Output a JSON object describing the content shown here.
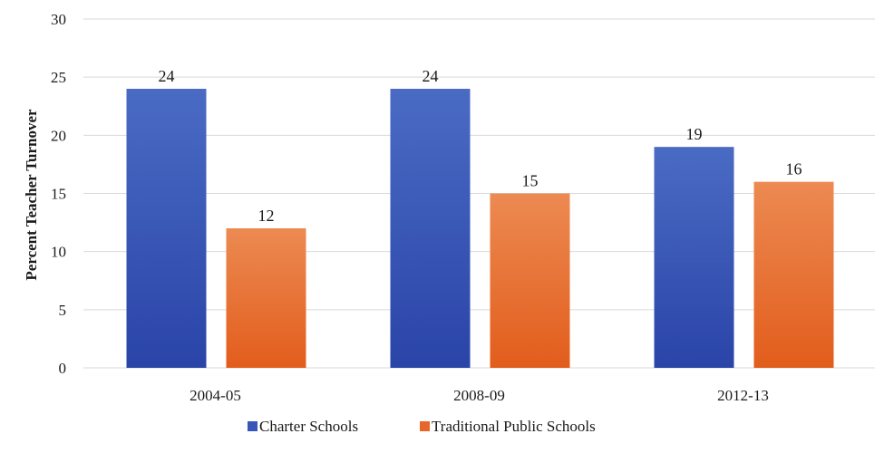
{
  "chart_data": {
    "type": "bar",
    "title": "",
    "xlabel": "",
    "ylabel": "Percent Teacher Turnover",
    "ylim": [
      0,
      30
    ],
    "yticks": [
      0,
      5,
      10,
      15,
      20,
      25,
      30
    ],
    "grid": true,
    "legend_position": "bottom",
    "categories": [
      "2004-05",
      "2008-09",
      "2012-13"
    ],
    "series": [
      {
        "name": "Charter Schools",
        "values": [
          24,
          24,
          19
        ],
        "color": "#3a55b8"
      },
      {
        "name": "Traditional Public Schools",
        "values": [
          12,
          15,
          16
        ],
        "color": "#e8662a"
      }
    ]
  }
}
